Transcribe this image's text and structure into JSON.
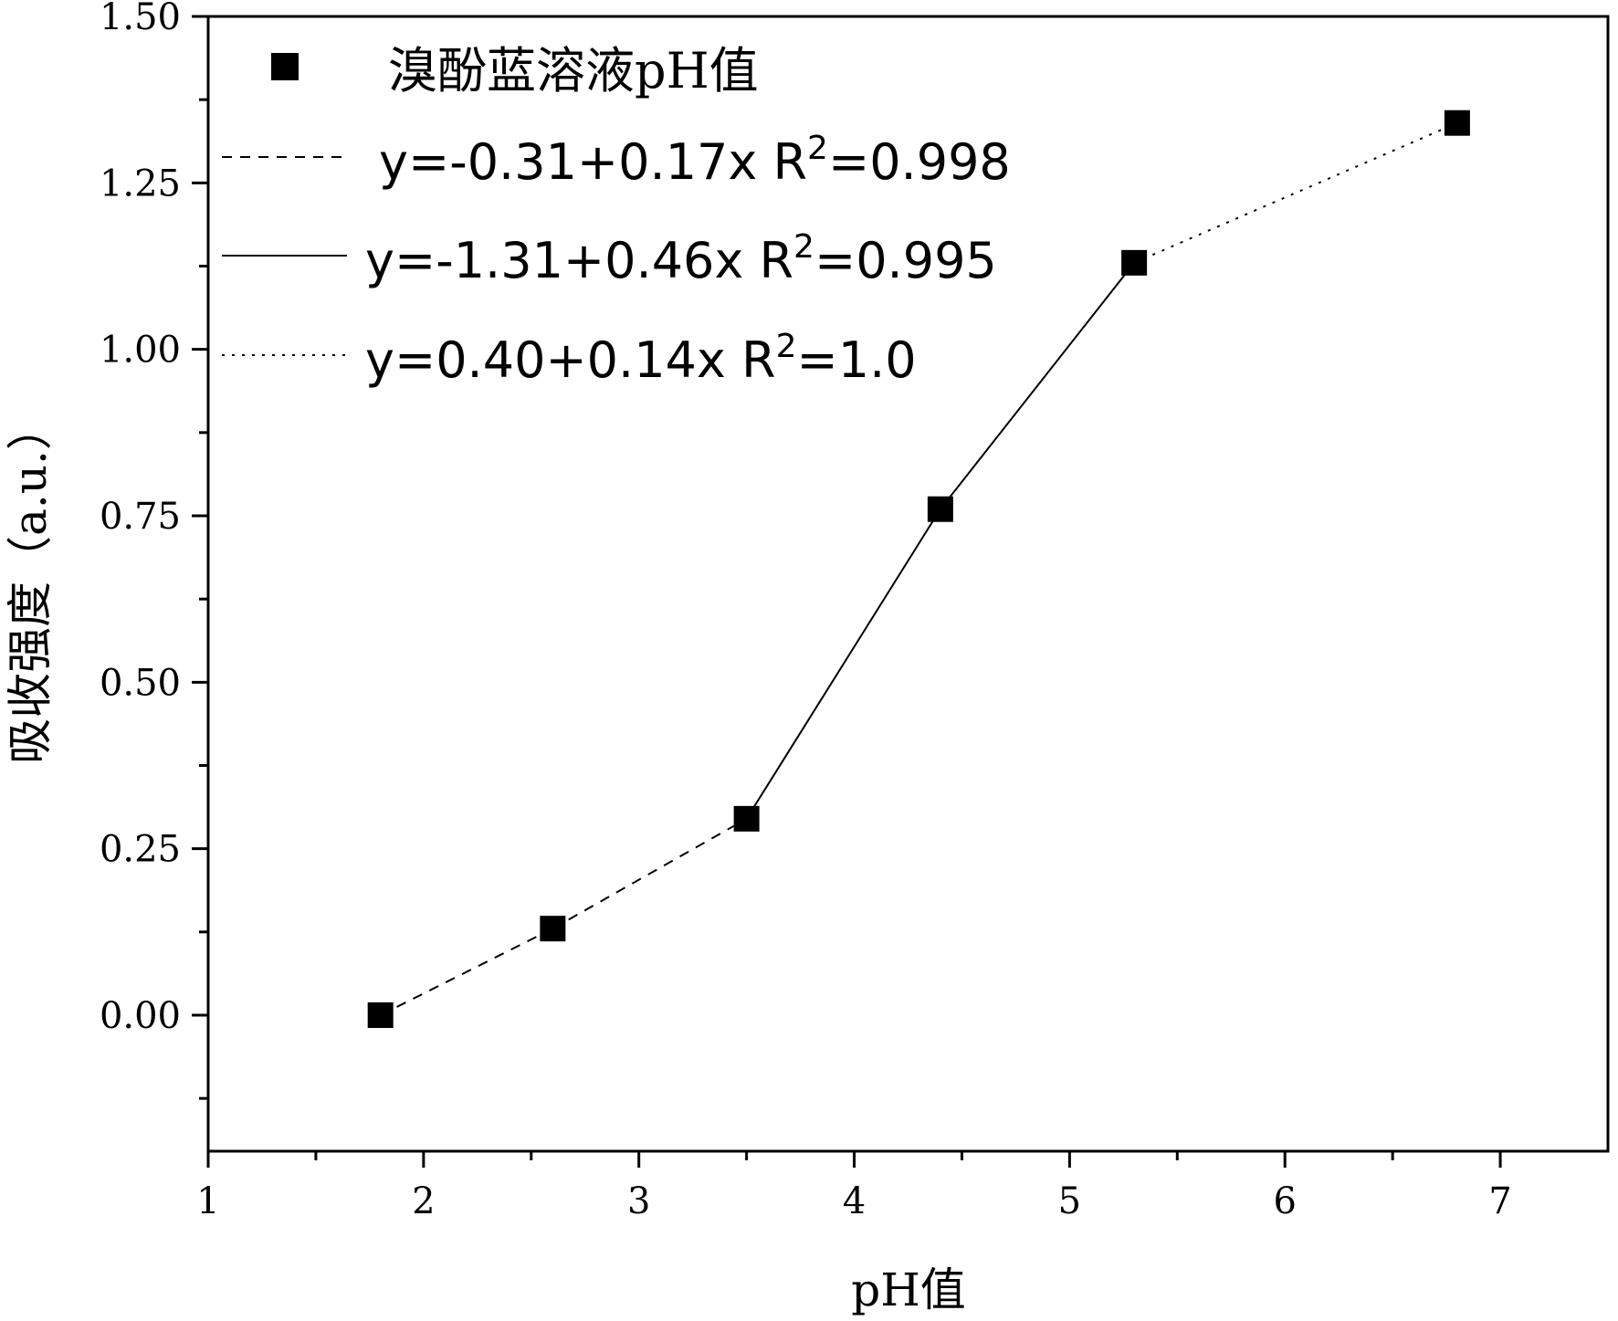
{
  "chart_data": {
    "type": "scatter",
    "xlabel": "pH值",
    "ylabel": "吸收强度（a.u.）",
    "xlim": [
      1,
      7.5
    ],
    "ylim": [
      -0.2,
      1.5
    ],
    "x_ticks": [
      "1",
      "2",
      "3",
      "4",
      "5",
      "6",
      "7"
    ],
    "y_ticks": [
      "0.00",
      "0.25",
      "0.50",
      "0.75",
      "1.00",
      "1.25",
      "1.50"
    ],
    "grid": false,
    "legend_position": "top-left",
    "series": [
      {
        "name": "溴酚蓝溶液pH值",
        "marker": "square",
        "color": "#000000",
        "x": [
          1.8,
          2.6,
          3.5,
          4.4,
          5.3,
          6.8
        ],
        "y": [
          0.0,
          0.13,
          0.295,
          0.76,
          1.13,
          1.34
        ]
      }
    ],
    "fits": [
      {
        "name": "y=-0.31+0.17x  R",
        "sup": "2",
        "tail": "=0.998",
        "style": "dashed",
        "x_range": [
          1.8,
          3.5
        ]
      },
      {
        "name": "y=-1.31+0.46x  R",
        "sup": "2",
        "tail": "=0.995",
        "style": "solid",
        "x_range": [
          3.5,
          5.3
        ]
      },
      {
        "name": "y=0.40+0.14x  R",
        "sup": "2",
        "tail": "=1.0",
        "style": "dotted",
        "x_range": [
          5.3,
          6.8
        ]
      }
    ]
  }
}
